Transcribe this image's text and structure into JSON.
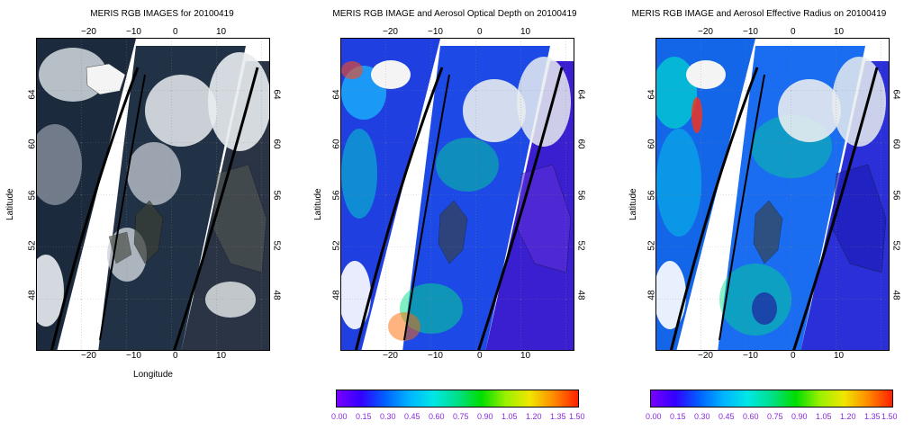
{
  "panels": [
    {
      "title": "MERIS RGB IMAGES for 20100419",
      "xlabel": "Longitude",
      "ylabel": "Latitude",
      "type": "rgb"
    },
    {
      "title": "MERIS RGB IMAGE and Aerosol Optical Depth on 20100419",
      "xlabel": "",
      "ylabel": "Latitude",
      "type": "aod"
    },
    {
      "title": "MERIS RGB IMAGE and Aerosol Effective Radius on 20100419",
      "xlabel": "",
      "ylabel": "Latitude",
      "type": "radius"
    }
  ],
  "lon_ticks": [
    "−20",
    "−10",
    "0",
    "10"
  ],
  "lat_ticks": [
    "64",
    "60",
    "56",
    "52",
    "48"
  ],
  "colorbar_ticks": [
    "0.00",
    "0.15",
    "0.30",
    "0.45",
    "0.60",
    "0.75",
    "0.90",
    "1.05",
    "1.20",
    "1.35",
    "1.50"
  ],
  "colors": {
    "ocean_rgb": "#1c2a3d",
    "cloud": "#e8ecef",
    "aod_ocean": "#1f3fe0",
    "radius_ocean": "#1466e8",
    "land_dark": "#3a3f36",
    "colorbar_label": "#8a2be2"
  }
}
